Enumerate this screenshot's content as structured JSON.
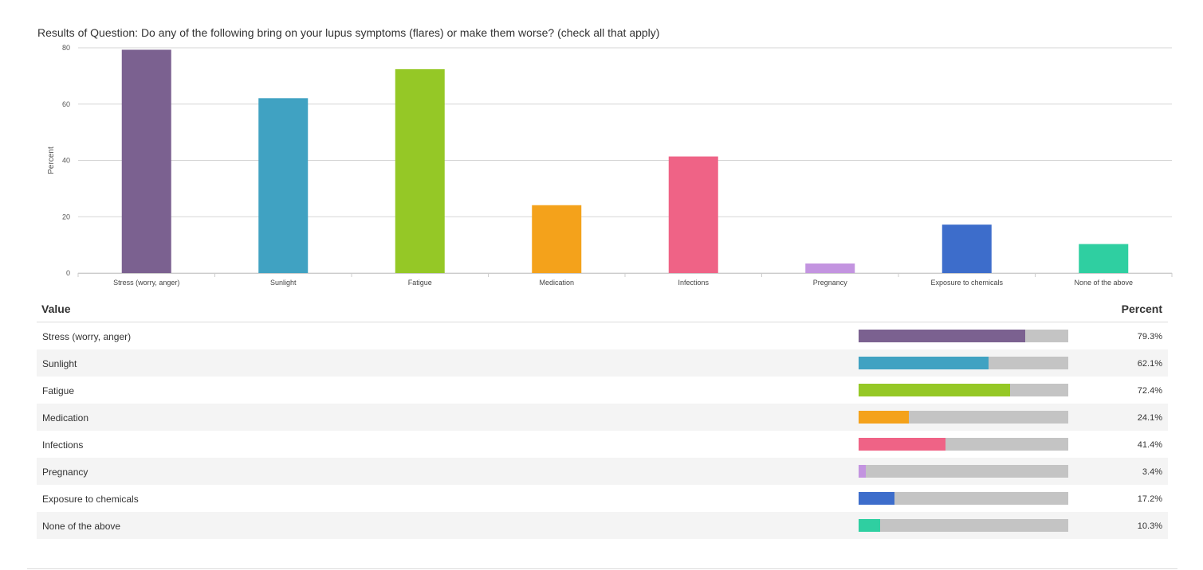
{
  "chart_data": {
    "type": "bar",
    "title": "Results of Question: Do any of the following bring on your lupus symptoms (flares) or make them worse? (check all that apply)",
    "xlabel": "",
    "ylabel": "Percent",
    "ylim": [
      0,
      80
    ],
    "yticks": [
      "0",
      "20",
      "40",
      "60",
      "80"
    ],
    "grid": true,
    "categories": [
      "Stress (worry, anger)",
      "Sunlight",
      "Fatigue",
      "Medication",
      "Infections",
      "Pregnancy",
      "Exposure to chemicals",
      "None of the above"
    ],
    "values": [
      79.3,
      62.1,
      72.4,
      24.1,
      41.4,
      3.4,
      17.2,
      10.3
    ],
    "colors": [
      "#7b6190",
      "#40a2c2",
      "#95c826",
      "#f4a21b",
      "#ef6386",
      "#c394e0",
      "#3d6dcb",
      "#2fcfa1"
    ]
  },
  "table": {
    "header_value": "Value",
    "header_percent": "Percent",
    "rows": [
      {
        "label": "Stress (worry, anger)",
        "pct": "79.3%"
      },
      {
        "label": "Sunlight",
        "pct": "62.1%"
      },
      {
        "label": "Fatigue",
        "pct": "72.4%"
      },
      {
        "label": "Medication",
        "pct": "24.1%"
      },
      {
        "label": "Infections",
        "pct": "41.4%"
      },
      {
        "label": "Pregnancy",
        "pct": "3.4%"
      },
      {
        "label": "Exposure to chemicals",
        "pct": "17.2%"
      },
      {
        "label": "None of the above",
        "pct": "10.3%"
      }
    ],
    "bar_track_color": "#c4c4c4"
  }
}
